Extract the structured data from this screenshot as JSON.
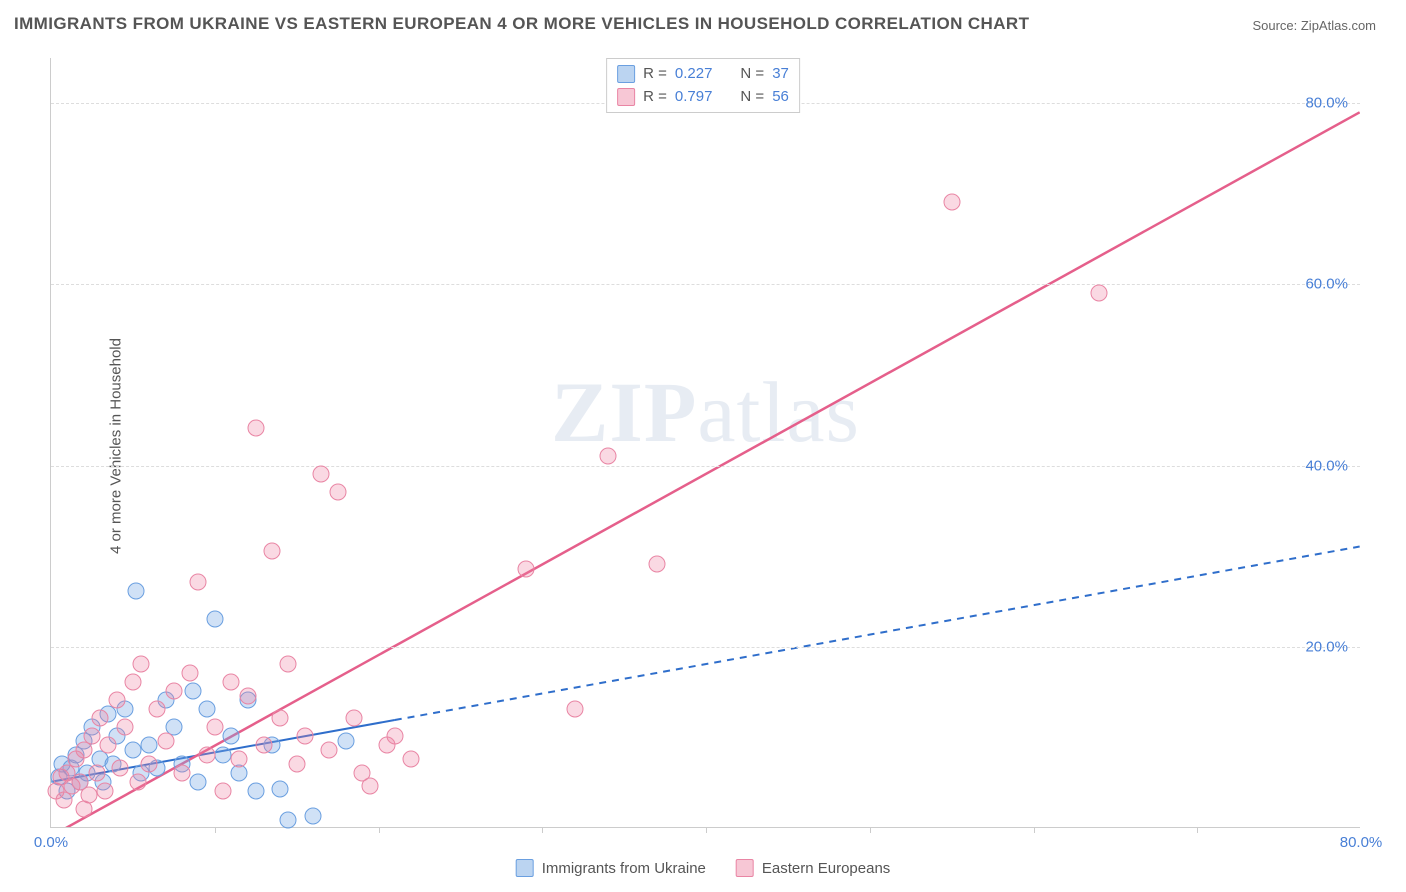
{
  "title": "IMMIGRANTS FROM UKRAINE VS EASTERN EUROPEAN 4 OR MORE VEHICLES IN HOUSEHOLD CORRELATION CHART",
  "source": "Source: ZipAtlas.com",
  "ylabel": "4 or more Vehicles in Household",
  "watermark": "ZIPatlas",
  "chart": {
    "type": "scatter",
    "xlim": [
      0,
      80
    ],
    "ylim": [
      0,
      85
    ],
    "x_ticks": [
      0,
      20,
      40,
      60,
      80
    ],
    "y_ticks": [
      20,
      40,
      60,
      80
    ],
    "x_tick_labels": [
      "0.0%",
      "",
      "",
      "",
      "80.0%"
    ],
    "y_tick_labels": [
      "20.0%",
      "40.0%",
      "60.0%",
      "80.0%"
    ],
    "x_minor_marks": [
      10,
      20,
      30,
      40,
      50,
      60,
      70
    ],
    "grid_color": "#dddddd",
    "background_color": "#ffffff",
    "series": [
      {
        "name": "Immigrants from Ukraine",
        "color_fill": "rgba(120,169,228,0.35)",
        "color_stroke": "#6a9fe0",
        "r_value": 0.227,
        "n_value": 37,
        "trend": {
          "x1": 0,
          "y1": 5,
          "x2": 80,
          "y2": 31,
          "solid_until_x": 21,
          "color": "#2f6ecb",
          "width": 2
        },
        "points": [
          [
            0.5,
            5.5
          ],
          [
            0.7,
            7.0
          ],
          [
            1.0,
            4.0
          ],
          [
            1.2,
            6.5
          ],
          [
            1.5,
            8.0
          ],
          [
            1.8,
            5.0
          ],
          [
            2.0,
            9.5
          ],
          [
            2.2,
            6.0
          ],
          [
            2.5,
            11.0
          ],
          [
            3.0,
            7.5
          ],
          [
            3.2,
            5.0
          ],
          [
            3.5,
            12.5
          ],
          [
            3.8,
            7.0
          ],
          [
            4.0,
            10.0
          ],
          [
            4.5,
            13.0
          ],
          [
            5.0,
            8.5
          ],
          [
            5.2,
            26.0
          ],
          [
            5.5,
            6.0
          ],
          [
            6.0,
            9.0
          ],
          [
            6.5,
            6.5
          ],
          [
            7.0,
            14.0
          ],
          [
            7.5,
            11.0
          ],
          [
            8.0,
            7.0
          ],
          [
            8.7,
            15.0
          ],
          [
            9.0,
            5.0
          ],
          [
            9.5,
            13.0
          ],
          [
            10.0,
            23.0
          ],
          [
            10.5,
            8.0
          ],
          [
            11.0,
            10.0
          ],
          [
            11.5,
            6.0
          ],
          [
            12.0,
            14.0
          ],
          [
            12.5,
            4.0
          ],
          [
            13.5,
            9.0
          ],
          [
            14.0,
            4.2
          ],
          [
            14.5,
            0.8
          ],
          [
            16.0,
            1.2
          ],
          [
            18.0,
            9.5
          ]
        ]
      },
      {
        "name": "Eastern Europeans",
        "color_fill": "rgba(238,130,162,0.30)",
        "color_stroke": "#e985a4",
        "r_value": 0.797,
        "n_value": 56,
        "trend": {
          "x1": 0,
          "y1": -1,
          "x2": 80,
          "y2": 79,
          "solid_until_x": 80,
          "color": "#e55f8b",
          "width": 2.5
        },
        "points": [
          [
            0.3,
            4.0
          ],
          [
            0.6,
            5.5
          ],
          [
            0.8,
            3.0
          ],
          [
            1.0,
            6.0
          ],
          [
            1.3,
            4.5
          ],
          [
            1.5,
            7.5
          ],
          [
            1.8,
            5.0
          ],
          [
            2.0,
            8.5
          ],
          [
            2.3,
            3.5
          ],
          [
            2.5,
            10.0
          ],
          [
            2.8,
            6.0
          ],
          [
            3.0,
            12.0
          ],
          [
            3.3,
            4.0
          ],
          [
            3.5,
            9.0
          ],
          [
            4.0,
            14.0
          ],
          [
            4.2,
            6.5
          ],
          [
            4.5,
            11.0
          ],
          [
            5.0,
            16.0
          ],
          [
            5.3,
            5.0
          ],
          [
            5.5,
            18.0
          ],
          [
            6.0,
            7.0
          ],
          [
            6.5,
            13.0
          ],
          [
            7.0,
            9.5
          ],
          [
            7.5,
            15.0
          ],
          [
            8.0,
            6.0
          ],
          [
            8.5,
            17.0
          ],
          [
            9.0,
            27.0
          ],
          [
            9.5,
            8.0
          ],
          [
            10.0,
            11.0
          ],
          [
            10.5,
            4.0
          ],
          [
            11.0,
            16.0
          ],
          [
            11.5,
            7.5
          ],
          [
            12.0,
            14.5
          ],
          [
            12.5,
            44.0
          ],
          [
            13.0,
            9.0
          ],
          [
            13.5,
            30.5
          ],
          [
            14.0,
            12.0
          ],
          [
            14.5,
            18.0
          ],
          [
            15.0,
            7.0
          ],
          [
            15.5,
            10.0
          ],
          [
            16.5,
            39.0
          ],
          [
            17.0,
            8.5
          ],
          [
            17.5,
            37.0
          ],
          [
            18.5,
            12.0
          ],
          [
            19.0,
            6.0
          ],
          [
            19.5,
            4.5
          ],
          [
            20.5,
            9.0
          ],
          [
            21.0,
            10.0
          ],
          [
            22.0,
            7.5
          ],
          [
            29.0,
            28.5
          ],
          [
            32.0,
            13.0
          ],
          [
            34.0,
            41.0
          ],
          [
            37.0,
            29.0
          ],
          [
            55.0,
            69.0
          ],
          [
            64.0,
            59.0
          ],
          [
            2.0,
            2.0
          ]
        ]
      }
    ]
  },
  "legend_top": {
    "rows": [
      {
        "swatch": "blue",
        "r_label": "R =",
        "r_value": "0.227",
        "n_label": "N =",
        "n_value": "37"
      },
      {
        "swatch": "pink",
        "r_label": "R =",
        "r_value": "0.797",
        "n_label": "N =",
        "n_value": "56"
      }
    ]
  },
  "legend_bottom": {
    "items": [
      {
        "swatch": "blue",
        "label": "Immigrants from Ukraine"
      },
      {
        "swatch": "pink",
        "label": "Eastern Europeans"
      }
    ]
  }
}
